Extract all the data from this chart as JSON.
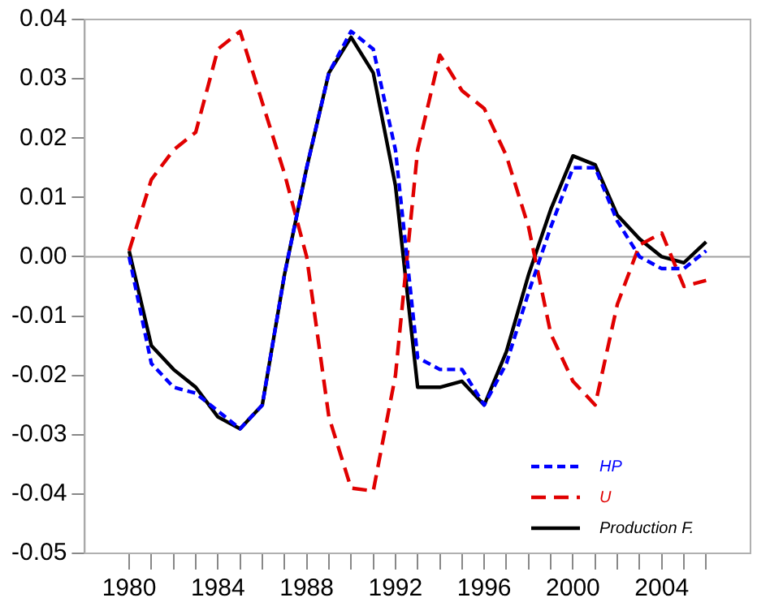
{
  "chart_data": {
    "type": "line",
    "x": [
      1980,
      1981,
      1982,
      1983,
      1984,
      1985,
      1986,
      1987,
      1988,
      1989,
      1990,
      1991,
      1992,
      1993,
      1994,
      1995,
      1996,
      1997,
      1998,
      1999,
      2000,
      2001,
      2002,
      2003,
      2004,
      2005,
      2006
    ],
    "series": [
      {
        "name": "HP",
        "color": "#0000ff",
        "line_style": "dotted",
        "values": [
          0.0,
          -0.018,
          -0.022,
          -0.023,
          -0.026,
          -0.029,
          -0.025,
          -0.003,
          0.015,
          0.031,
          0.038,
          0.035,
          0.018,
          -0.017,
          -0.019,
          -0.019,
          -0.025,
          -0.018,
          -0.006,
          0.005,
          0.015,
          0.015,
          0.006,
          0.0,
          -0.002,
          -0.002,
          0.001
        ]
      },
      {
        "name": "U",
        "color": "#e00000",
        "line_style": "dashed",
        "values": [
          0.001,
          0.013,
          0.018,
          0.021,
          0.035,
          0.038,
          0.026,
          0.014,
          0.0,
          -0.027,
          -0.039,
          -0.0395,
          -0.02,
          0.018,
          0.034,
          0.028,
          0.025,
          0.017,
          0.005,
          -0.013,
          -0.021,
          -0.025,
          -0.008,
          0.002,
          0.004,
          -0.005,
          -0.004
        ]
      },
      {
        "name": "Production F.",
        "color": "#000000",
        "line_style": "solid",
        "values": [
          0.001,
          -0.015,
          -0.019,
          -0.022,
          -0.027,
          -0.029,
          -0.025,
          -0.003,
          0.015,
          0.031,
          0.037,
          0.031,
          0.012,
          -0.022,
          -0.022,
          -0.021,
          -0.025,
          -0.016,
          -0.003,
          0.008,
          0.017,
          0.0155,
          0.007,
          0.003,
          0.0,
          -0.001,
          0.0025
        ]
      }
    ],
    "xlim": [
      1978,
      2008
    ],
    "xticks": [
      1980,
      {
        "value": 1981,
        "label": null
      },
      {
        "value": 1982,
        "label": null
      },
      {
        "value": 1983,
        "label": null
      },
      1984,
      {
        "value": 1985,
        "label": null
      },
      {
        "value": 1986,
        "label": null
      },
      {
        "value": 1987,
        "label": null
      },
      1988,
      {
        "value": 1989,
        "label": null
      },
      {
        "value": 1990,
        "label": null
      },
      {
        "value": 1991,
        "label": null
      },
      1992,
      {
        "value": 1993,
        "label": null
      },
      {
        "value": 1994,
        "label": null
      },
      {
        "value": 1995,
        "label": null
      },
      1996,
      {
        "value": 1997,
        "label": null
      },
      {
        "value": 1998,
        "label": null
      },
      {
        "value": 1999,
        "label": null
      },
      2000,
      {
        "value": 2001,
        "label": null
      },
      {
        "value": 2002,
        "label": null
      },
      {
        "value": 2003,
        "label": null
      },
      2004,
      {
        "value": 2005,
        "label": null
      },
      {
        "value": 2006,
        "label": null
      }
    ],
    "ylim": [
      -0.05,
      0.04
    ],
    "yticks": [
      -0.05,
      -0.04,
      -0.03,
      -0.02,
      -0.01,
      {
        "value": 0,
        "label": "0.00"
      },
      0.01,
      0.02,
      0.03,
      0.04
    ],
    "ref_lines": [
      {
        "axis": "y",
        "value": 0,
        "color": "#a0a0a0"
      }
    ],
    "grid": false,
    "legend": "bottom right",
    "marker": "none"
  }
}
